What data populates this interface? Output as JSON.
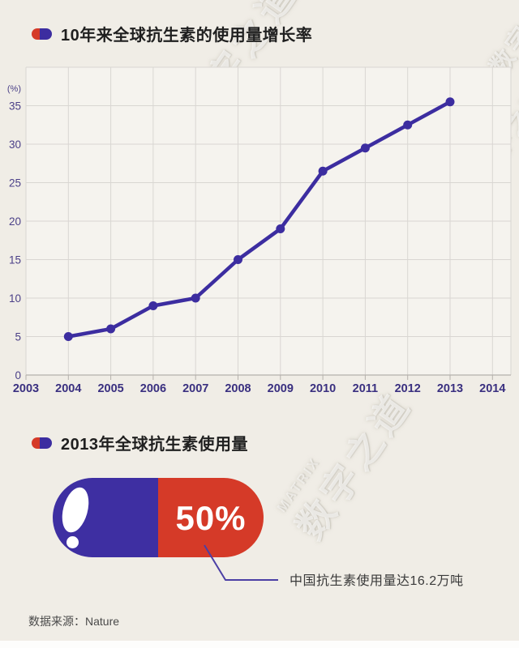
{
  "page": {
    "background": "#f0ede6",
    "accent_red": "#d53a28",
    "accent_purple": "#3c2da0"
  },
  "section1": {
    "title": "10年来全球抗生素的使用量增长率"
  },
  "chart_data": {
    "type": "line",
    "title": "10年来全球抗生素的使用量增长率",
    "x": [
      2004,
      2005,
      2006,
      2007,
      2008,
      2009,
      2010,
      2011,
      2012,
      2013
    ],
    "values": [
      5,
      6,
      9,
      10,
      15,
      19,
      26.5,
      29.5,
      32.5,
      35.5
    ],
    "x_axis_ticks": [
      2003,
      2004,
      2005,
      2006,
      2007,
      2008,
      2009,
      2010,
      2011,
      2012,
      2013,
      2014
    ],
    "y_ticks": [
      0,
      5,
      10,
      15,
      20,
      25,
      30,
      35
    ],
    "y_unit_label": "(%)",
    "xlabel": "",
    "ylabel": "(%)",
    "xlim": [
      2003,
      2014
    ],
    "ylim": [
      0,
      40
    ],
    "grid": true,
    "legend": "none",
    "line_color": "#3c2da0",
    "point_color": "#3c2da0",
    "grid_color": "#d9d6d2",
    "axis_color": "#b5b1ac",
    "tick_label_color_y": "#4b4088",
    "tick_label_color_x": "#3a3080",
    "plot_bg": "#f5f3ee"
  },
  "section2": {
    "title": "2013年全球抗生素使用量",
    "percent": "50%",
    "annotation": "中国抗生素使用量达16.2万吨",
    "pill_left_color": "#3e2fa2",
    "pill_right_color": "#d53a28"
  },
  "footer": {
    "source": "数据来源：Nature"
  },
  "watermark": {
    "cn": "数字之道",
    "en": "MATRIX"
  }
}
